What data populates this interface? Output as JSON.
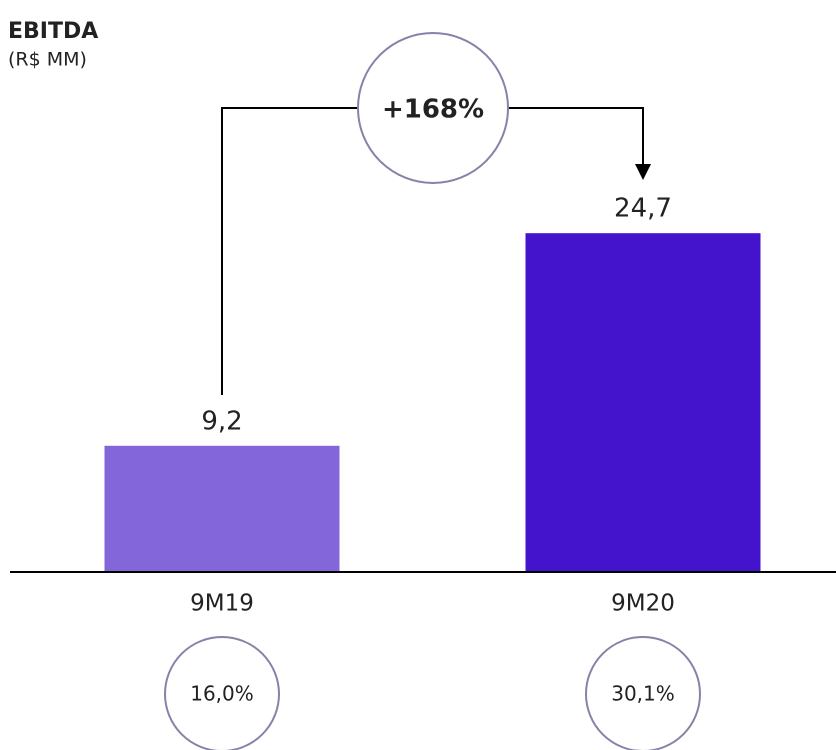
{
  "chart_data": {
    "type": "bar",
    "title": "EBITDA",
    "subtitle": "(R$ MM)",
    "categories": [
      "9M19",
      "9M20"
    ],
    "values": [
      9.2,
      24.7
    ],
    "value_labels": [
      "9,2",
      "24,7"
    ],
    "colors": [
      "#8466db",
      "#4314cc"
    ],
    "ylim": [
      0,
      41.7
    ],
    "annotation": "+168%",
    "margin_labels": [
      "16,0%",
      "30,1%"
    ]
  }
}
